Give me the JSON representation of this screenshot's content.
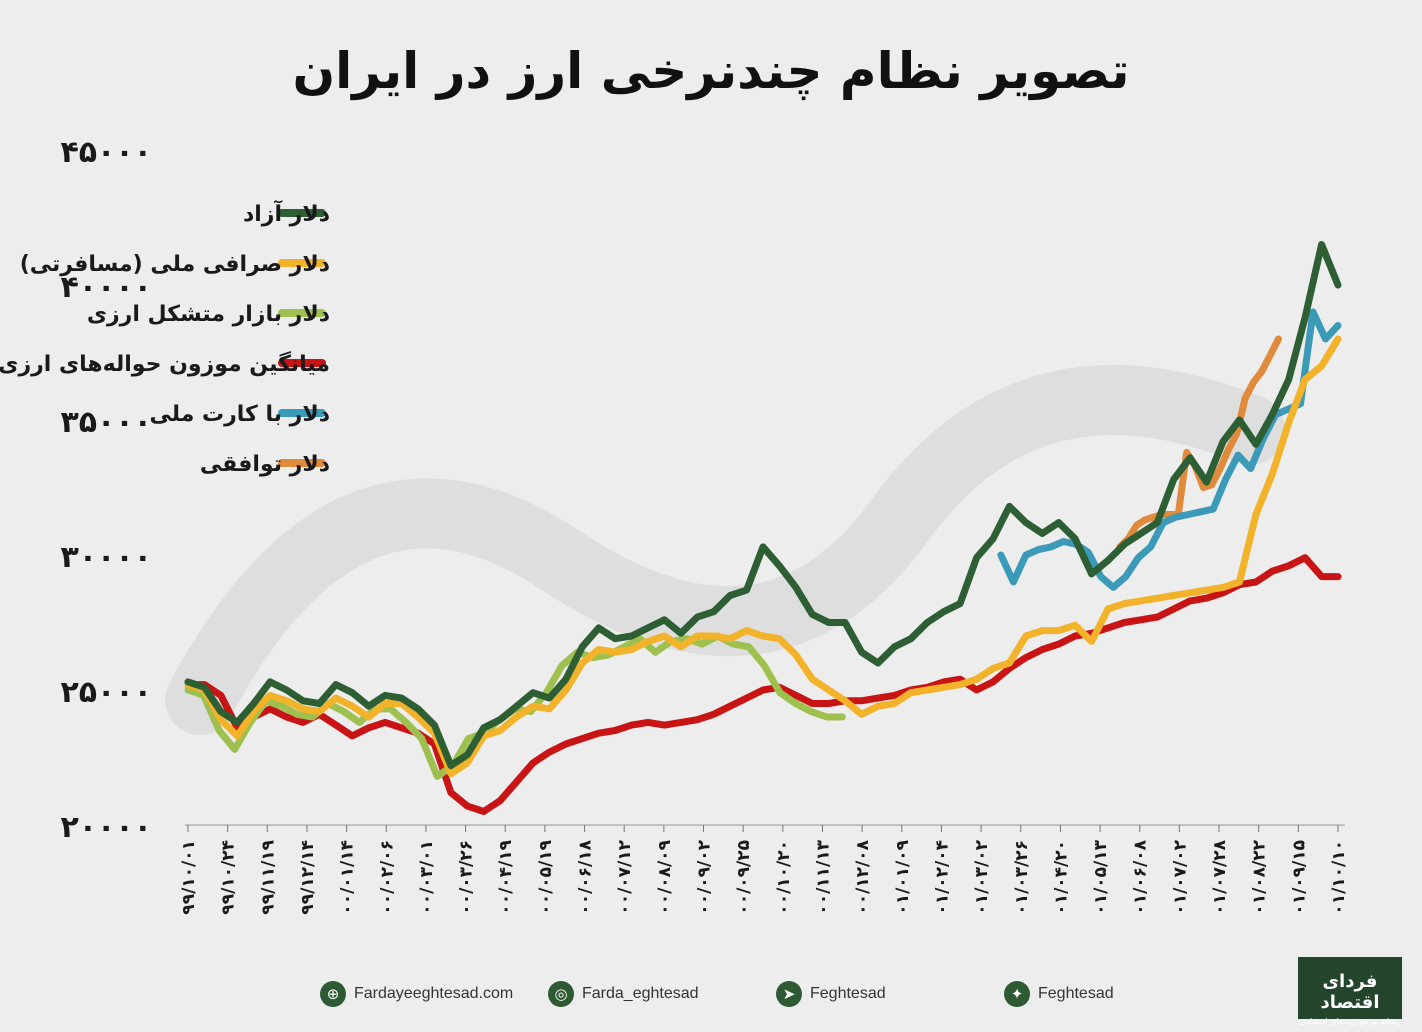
{
  "header": {
    "title": "تصویر نظام چندنرخی ارز در ایران"
  },
  "chart_data": {
    "type": "line",
    "title": "تصویر نظام چندنرخی ارز در ایران",
    "ylim": [
      20000,
      45000
    ],
    "y_ticks": [
      "۴۵۰۰۰",
      "۴۰۰۰۰",
      "۳۵۰۰۰",
      "۳۰۰۰۰",
      "۲۵۰۰۰",
      "۲۰۰۰۰"
    ],
    "y_tick_values": [
      45000,
      40000,
      35000,
      30000,
      25000,
      20000
    ],
    "x_ticks": [
      "۹۹/۱۰/۰۱",
      "۹۹/۱۰/۲۴",
      "۹۹/۱۱/۱۹",
      "۹۹/۱۲/۱۴",
      "۰۰/۰۱/۱۴",
      "۰۰/۰۲/۰۶",
      "۰۰/۰۳/۰۱",
      "۰۰/۰۳/۲۶",
      "۰۰/۰۴/۱۹",
      "۰۰/۰۵/۱۹",
      "۰۰/۰۶/۱۸",
      "۰۰/۰۷/۱۲",
      "۰۰/۰۸/۰۹",
      "۰۰/۰۹/۰۲",
      "۰۰/۰۹/۲۵",
      "۰۰/۱۰/۲۰",
      "۰۰/۱۱/۱۳",
      "۰۰/۱۲/۰۸",
      "۰۱/۰۱/۰۹",
      "۰۱/۰۲/۰۴",
      "۰۱/۰۳/۰۲",
      "۰۱/۰۳/۲۶",
      "۰۱/۰۴/۲۰",
      "۰۱/۰۵/۱۳",
      "۰۱/۰۶/۰۸",
      "۰۱/۰۷/۰۲",
      "۰۱/۰۷/۲۸",
      "۰۱/۰۸/۲۲",
      "۰۱/۰۹/۱۵",
      "۰۱/۱۰/۱۰"
    ],
    "legend_position": "top-left",
    "series": [
      {
        "name": "دلار آزاد",
        "color": "#2d5e34",
        "points": [
          [
            0,
            25300
          ],
          [
            1,
            25100
          ],
          [
            2,
            24200
          ],
          [
            3,
            23800
          ],
          [
            4,
            24500
          ],
          [
            5,
            25300
          ],
          [
            6,
            25000
          ],
          [
            7,
            24600
          ],
          [
            8,
            24500
          ],
          [
            9,
            25200
          ],
          [
            10,
            24900
          ],
          [
            11,
            24400
          ],
          [
            12,
            24800
          ],
          [
            13,
            24700
          ],
          [
            14,
            24300
          ],
          [
            15,
            23700
          ],
          [
            16,
            22200
          ],
          [
            17,
            22600
          ],
          [
            18,
            23600
          ],
          [
            19,
            23900
          ],
          [
            20,
            24400
          ],
          [
            21,
            24900
          ],
          [
            22,
            24700
          ],
          [
            23,
            25400
          ],
          [
            24,
            26600
          ],
          [
            25,
            27300
          ],
          [
            26,
            26900
          ],
          [
            27,
            27000
          ],
          [
            28,
            27300
          ],
          [
            29,
            27600
          ],
          [
            30,
            27100
          ],
          [
            31,
            27700
          ],
          [
            32,
            27900
          ],
          [
            33,
            28500
          ],
          [
            34,
            28700
          ],
          [
            35,
            30300
          ],
          [
            36,
            29600
          ],
          [
            37,
            28800
          ],
          [
            38,
            27800
          ],
          [
            39,
            27500
          ],
          [
            40,
            27500
          ],
          [
            41,
            26400
          ],
          [
            42,
            26000
          ],
          [
            43,
            26600
          ],
          [
            44,
            26900
          ],
          [
            45,
            27500
          ],
          [
            46,
            27900
          ],
          [
            47,
            28200
          ],
          [
            48,
            29900
          ],
          [
            49,
            30600
          ],
          [
            50,
            31800
          ],
          [
            51,
            31200
          ],
          [
            52,
            30800
          ],
          [
            53,
            31200
          ],
          [
            54,
            30600
          ],
          [
            55,
            29300
          ],
          [
            56,
            29800
          ],
          [
            57,
            30400
          ],
          [
            58,
            30800
          ],
          [
            59,
            31200
          ],
          [
            60,
            32800
          ],
          [
            61,
            33600
          ],
          [
            62,
            32700
          ],
          [
            63,
            34200
          ],
          [
            64,
            35000
          ],
          [
            65,
            34100
          ],
          [
            66,
            35200
          ],
          [
            67,
            36500
          ],
          [
            68,
            38800
          ],
          [
            69,
            41500
          ],
          [
            70,
            40000
          ]
        ]
      },
      {
        "name": "دلار صرافی ملی (مسافرتی)",
        "color": "#f2b22a",
        "points": [
          [
            0,
            25200
          ],
          [
            1,
            25000
          ],
          [
            2,
            23900
          ],
          [
            3,
            23300
          ],
          [
            4,
            24200
          ],
          [
            5,
            24800
          ],
          [
            6,
            24600
          ],
          [
            7,
            24300
          ],
          [
            8,
            24200
          ],
          [
            9,
            24700
          ],
          [
            10,
            24400
          ],
          [
            11,
            24000
          ],
          [
            12,
            24500
          ],
          [
            13,
            24500
          ],
          [
            14,
            24000
          ],
          [
            15,
            23400
          ],
          [
            16,
            21900
          ],
          [
            17,
            22300
          ],
          [
            18,
            23300
          ],
          [
            19,
            23500
          ],
          [
            20,
            24000
          ],
          [
            21,
            24400
          ],
          [
            22,
            24300
          ],
          [
            23,
            25000
          ],
          [
            24,
            26000
          ],
          [
            25,
            26500
          ],
          [
            26,
            26400
          ],
          [
            27,
            26500
          ],
          [
            28,
            26800
          ],
          [
            29,
            27000
          ],
          [
            30,
            26600
          ],
          [
            31,
            27000
          ],
          [
            32,
            27000
          ],
          [
            33,
            26900
          ],
          [
            34,
            27200
          ],
          [
            35,
            27000
          ],
          [
            36,
            26900
          ],
          [
            37,
            26300
          ],
          [
            38,
            25400
          ],
          [
            39,
            25000
          ],
          [
            40,
            24600
          ],
          [
            41,
            24100
          ],
          [
            42,
            24400
          ],
          [
            43,
            24500
          ],
          [
            44,
            24900
          ],
          [
            45,
            25000
          ],
          [
            46,
            25100
          ],
          [
            47,
            25200
          ],
          [
            48,
            25400
          ],
          [
            49,
            25800
          ],
          [
            50,
            26000
          ],
          [
            51,
            27000
          ],
          [
            52,
            27200
          ],
          [
            53,
            27200
          ],
          [
            54,
            27400
          ],
          [
            55,
            26800
          ],
          [
            56,
            28000
          ],
          [
            57,
            28200
          ],
          [
            58,
            28300
          ],
          [
            59,
            28400
          ],
          [
            60,
            28500
          ],
          [
            61,
            28600
          ],
          [
            62,
            28700
          ],
          [
            63,
            28800
          ],
          [
            64,
            29000
          ],
          [
            65,
            31500
          ],
          [
            66,
            33000
          ],
          [
            67,
            34900
          ],
          [
            68,
            36500
          ],
          [
            69,
            37000
          ],
          [
            70,
            38000
          ]
        ]
      },
      {
        "name": "دلار بازار متشکل ارزی",
        "color": "#9ec04e",
        "points": [
          [
            0,
            25000
          ],
          [
            1,
            24800
          ],
          [
            2,
            23500
          ],
          [
            3,
            22800
          ],
          [
            4,
            23800
          ],
          [
            5,
            24600
          ],
          [
            6,
            24400
          ],
          [
            7,
            24100
          ],
          [
            8,
            24000
          ],
          [
            9,
            24500
          ],
          [
            10,
            24200
          ],
          [
            11,
            23800
          ],
          [
            12,
            24300
          ],
          [
            13,
            24300
          ],
          [
            14,
            23800
          ],
          [
            15,
            23200
          ],
          [
            16,
            21800
          ],
          [
            17,
            22200
          ],
          [
            18,
            23200
          ],
          [
            19,
            23400
          ],
          [
            20,
            23900
          ],
          [
            21,
            24300
          ],
          [
            22,
            24200
          ],
          [
            23,
            24900
          ],
          [
            24,
            25900
          ],
          [
            25,
            26400
          ],
          [
            26,
            26200
          ],
          [
            27,
            26300
          ],
          [
            28,
            26600
          ],
          [
            29,
            26900
          ],
          [
            30,
            26400
          ],
          [
            31,
            26800
          ],
          [
            32,
            26900
          ],
          [
            33,
            26700
          ],
          [
            34,
            27000
          ],
          [
            35,
            26700
          ],
          [
            36,
            26600
          ],
          [
            37,
            25900
          ],
          [
            38,
            24900
          ],
          [
            39,
            24500
          ],
          [
            40,
            24200
          ],
          [
            41,
            24000
          ],
          [
            42,
            24000
          ]
        ]
      },
      {
        "name": "میانگین موزون حواله‌های ارزی (نیما)",
        "color": "#c81414",
        "points": [
          [
            0,
            25200
          ],
          [
            1,
            25200
          ],
          [
            2,
            24800
          ],
          [
            3,
            23600
          ],
          [
            4,
            24000
          ],
          [
            5,
            24300
          ],
          [
            6,
            24000
          ],
          [
            7,
            23800
          ],
          [
            8,
            24100
          ],
          [
            9,
            23700
          ],
          [
            10,
            23300
          ],
          [
            11,
            23600
          ],
          [
            12,
            23800
          ],
          [
            13,
            23600
          ],
          [
            14,
            23400
          ],
          [
            15,
            23000
          ],
          [
            16,
            21200
          ],
          [
            17,
            20700
          ],
          [
            18,
            20500
          ],
          [
            19,
            20900
          ],
          [
            20,
            21600
          ],
          [
            21,
            22300
          ],
          [
            22,
            22700
          ],
          [
            23,
            23000
          ],
          [
            24,
            23200
          ],
          [
            25,
            23400
          ],
          [
            26,
            23500
          ],
          [
            27,
            23700
          ],
          [
            28,
            23800
          ],
          [
            29,
            23700
          ],
          [
            30,
            23800
          ],
          [
            31,
            23900
          ],
          [
            32,
            24100
          ],
          [
            33,
            24400
          ],
          [
            34,
            24700
          ],
          [
            35,
            25000
          ],
          [
            36,
            25100
          ],
          [
            37,
            24800
          ],
          [
            38,
            24500
          ],
          [
            39,
            24500
          ],
          [
            40,
            24600
          ],
          [
            41,
            24600
          ],
          [
            42,
            24700
          ],
          [
            43,
            24800
          ],
          [
            44,
            25000
          ],
          [
            45,
            25100
          ],
          [
            46,
            25300
          ],
          [
            47,
            25400
          ],
          [
            48,
            25000
          ],
          [
            49,
            25300
          ],
          [
            50,
            25800
          ],
          [
            51,
            26200
          ],
          [
            52,
            26500
          ],
          [
            53,
            26700
          ],
          [
            54,
            27000
          ],
          [
            55,
            27100
          ],
          [
            56,
            27300
          ],
          [
            57,
            27500
          ],
          [
            58,
            27600
          ],
          [
            59,
            27700
          ],
          [
            60,
            28000
          ],
          [
            61,
            28300
          ],
          [
            62,
            28400
          ],
          [
            63,
            28600
          ],
          [
            64,
            28900
          ],
          [
            65,
            29000
          ],
          [
            66,
            29400
          ],
          [
            67,
            29600
          ],
          [
            68,
            29900
          ],
          [
            69,
            29200
          ],
          [
            70,
            29200
          ]
        ]
      },
      {
        "name": "دلار با کارت ملی",
        "color": "#3c9ab9",
        "points": [
          [
            0,
            30000
          ],
          [
            1,
            29000
          ],
          [
            2,
            30000
          ],
          [
            3,
            30200
          ],
          [
            4,
            30300
          ],
          [
            5,
            30500
          ],
          [
            6,
            30400
          ],
          [
            7,
            30100
          ],
          [
            8,
            29200
          ],
          [
            9,
            28800
          ],
          [
            10,
            29200
          ],
          [
            11,
            29900
          ],
          [
            12,
            30300
          ],
          [
            13,
            31200
          ],
          [
            14,
            31400
          ],
          [
            15,
            31500
          ],
          [
            16,
            31600
          ],
          [
            17,
            31700
          ],
          [
            18,
            32800
          ],
          [
            19,
            33700
          ],
          [
            20,
            33200
          ],
          [
            21,
            34300
          ],
          [
            22,
            35200
          ],
          [
            23,
            35400
          ],
          [
            24,
            35600
          ],
          [
            25,
            39000
          ],
          [
            26,
            38000
          ],
          [
            27,
            38500
          ]
        ]
      },
      {
        "name": "دلار توافقی",
        "color": "#e08a3c",
        "points": [
          [
            0,
            30300
          ],
          [
            1,
            30600
          ],
          [
            2,
            31100
          ],
          [
            3,
            31300
          ],
          [
            4,
            31400
          ],
          [
            5,
            31500
          ],
          [
            6,
            31500
          ],
          [
            7,
            31500
          ],
          [
            8,
            33800
          ],
          [
            9,
            33300
          ],
          [
            10,
            32500
          ],
          [
            11,
            32600
          ],
          [
            12,
            33200
          ],
          [
            13,
            33900
          ],
          [
            14,
            34500
          ],
          [
            15,
            35800
          ],
          [
            16,
            36400
          ],
          [
            17,
            36800
          ],
          [
            18,
            37400
          ],
          [
            19,
            38000
          ]
        ]
      }
    ]
  },
  "footer": {
    "website": "Fardayeeghtesad.com",
    "instagram": "Farda_eghtesad",
    "telegram": "Feghtesad",
    "twitter": "Feghtesad",
    "logo_title": "فردای اقتصاد",
    "logo_subtitle": "رسانه مرجع روندهای اقتصادی"
  }
}
